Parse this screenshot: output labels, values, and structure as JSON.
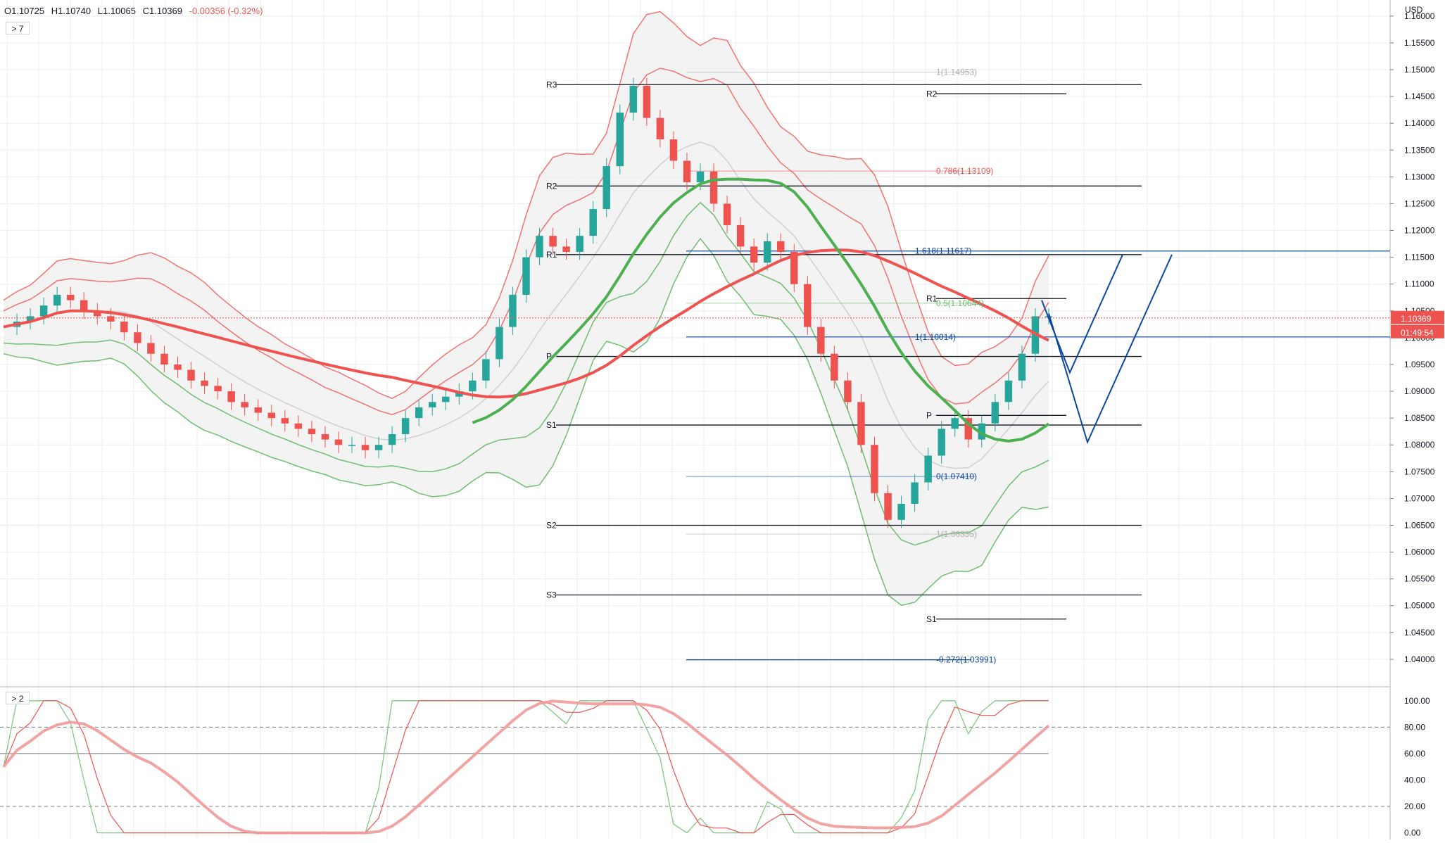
{
  "ohlc": {
    "open": "O1.10725",
    "high": "H1.10740",
    "low": "L1.10065",
    "close": "C1.10369",
    "change": "-0.00356 (-0.32%)"
  },
  "price_pane_toggle": "> 7",
  "osc_pane_toggle": "> 2",
  "currency": "USD",
  "last_price_tag": "1.10369",
  "countdown_tag": "01:49:54",
  "colors": {
    "up": "#26a69a",
    "down": "#ef5350",
    "ma200": "#ef5350",
    "ma_green": "#4caf50",
    "blue": "#0d47a1",
    "grid": "#eeeeee"
  },
  "chart_data": [
    {
      "type": "candlestick",
      "ylim": [
        1.035,
        1.163
      ],
      "y_ticks": [
        "1.16000",
        "1.15500",
        "1.15000",
        "1.14500",
        "1.14000",
        "1.13500",
        "1.13000",
        "1.12500",
        "1.12000",
        "1.11500",
        "1.11000",
        "1.10500",
        "1.10000",
        "1.09500",
        "1.09000",
        "1.08500",
        "1.08000",
        "1.07500",
        "1.07000",
        "1.06500",
        "1.06000",
        "1.05500",
        "1.05000",
        "1.04500",
        "1.04000"
      ],
      "close_series": [
        1.102,
        1.103,
        1.104,
        1.106,
        1.108,
        1.107,
        1.105,
        1.104,
        1.103,
        1.101,
        1.099,
        1.097,
        1.095,
        1.094,
        1.092,
        1.091,
        1.09,
        1.088,
        1.087,
        1.086,
        1.085,
        1.084,
        1.083,
        1.082,
        1.081,
        1.08,
        1.08,
        1.079,
        1.08,
        1.082,
        1.085,
        1.087,
        1.088,
        1.089,
        1.09,
        1.092,
        1.096,
        1.102,
        1.108,
        1.115,
        1.119,
        1.117,
        1.116,
        1.119,
        1.124,
        1.132,
        1.142,
        1.147,
        1.141,
        1.137,
        1.133,
        1.129,
        1.131,
        1.125,
        1.121,
        1.117,
        1.114,
        1.118,
        1.116,
        1.11,
        1.102,
        1.097,
        1.092,
        1.088,
        1.08,
        1.071,
        1.066,
        1.069,
        1.073,
        1.078,
        1.083,
        1.085,
        1.081,
        1.084,
        1.088,
        1.092,
        1.097,
        1.104,
        1.104
      ],
      "pivot_levels": [
        {
          "label": "R3",
          "value": 1.1472
        },
        {
          "label": "R2",
          "value": 1.1283
        },
        {
          "label": "R1",
          "value": 1.1155
        },
        {
          "label": "P",
          "value": 1.0965
        },
        {
          "label": "S1",
          "value": 1.0837
        },
        {
          "label": "S2",
          "value": 1.065
        },
        {
          "label": "S3",
          "value": 1.052
        }
      ],
      "pivot_levels_right": [
        {
          "label": "R2",
          "value": 1.1455
        },
        {
          "label": "R1",
          "value": 1.1073
        },
        {
          "label": "P",
          "value": 1.0855
        },
        {
          "label": "S1",
          "value": 1.0475
        }
      ],
      "fib_labels": [
        {
          "text": "1(1.14953)",
          "value": 1.14953
        },
        {
          "text": "0.786(1.13109)",
          "value": 1.13109
        },
        {
          "text": "0.5(1.10644)",
          "value": 1.10644
        },
        {
          "text": "0(1.07410)",
          "value": 1.0741
        },
        {
          "text": "1(1.06335)",
          "value": 1.06335
        }
      ],
      "ext_labels": [
        {
          "text": "1.618(1.11617)",
          "value": 1.11617
        },
        {
          "text": "1(1.10014)",
          "value": 1.10014
        },
        {
          "text": "-0.272(1.03991)",
          "value": 1.03991
        }
      ]
    },
    {
      "type": "line",
      "ylim": [
        -5,
        110
      ],
      "y_ticks": [
        "100.00",
        "80.00",
        "60.00",
        "40.00",
        "20.00",
        "0.00"
      ],
      "bands": [
        20,
        80
      ]
    }
  ]
}
